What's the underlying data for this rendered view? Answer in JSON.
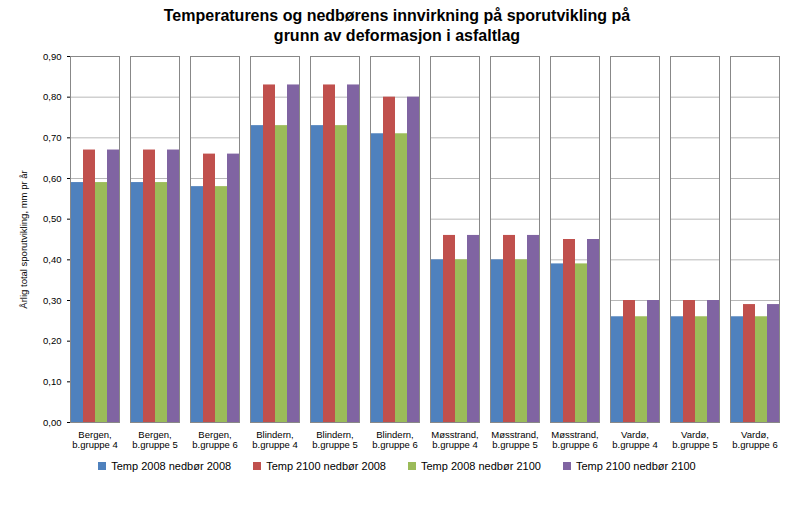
{
  "chart_data": {
    "type": "bar",
    "title": "Temperaturens og nedbørens innvirkning på sporutvikling på grunn av deformasjon i asfaltlag",
    "y_label": "Årlig total sporutvikling, mm pr år",
    "categories": [
      "Bergen, b.gruppe 4",
      "Bergen, b.gruppe 5",
      "Bergen, b.gruppe 6",
      "Blindern, b.gruppe 4",
      "Blindern, b.gruppe 5",
      "Blindern, b.gruppe 6",
      "Møsstrand, b.gruppe 4",
      "Møsstrand, b.gruppe 5",
      "Møsstrand, b.gruppe 6",
      "Vardø, b.gruppe 4",
      "Vardø, b.gruppe 5",
      "Vardø, b.gruppe 6"
    ],
    "series": [
      {
        "name": "Temp 2008 nedbør 2008",
        "color": "#4f81bd",
        "values": [
          0.59,
          0.59,
          0.58,
          0.73,
          0.73,
          0.71,
          0.4,
          0.4,
          0.39,
          0.26,
          0.26,
          0.26
        ]
      },
      {
        "name": "Temp 2100 nedbør 2008",
        "color": "#c0504d",
        "values": [
          0.67,
          0.67,
          0.66,
          0.83,
          0.83,
          0.8,
          0.46,
          0.46,
          0.45,
          0.3,
          0.3,
          0.29
        ]
      },
      {
        "name": "Temp 2008 nedbør 2100",
        "color": "#9bbb59",
        "values": [
          0.59,
          0.59,
          0.58,
          0.73,
          0.73,
          0.71,
          0.4,
          0.4,
          0.39,
          0.26,
          0.26,
          0.26
        ]
      },
      {
        "name": "Temp 2100 nedbør 2100",
        "color": "#8064a2",
        "values": [
          0.67,
          0.67,
          0.66,
          0.83,
          0.83,
          0.8,
          0.46,
          0.46,
          0.45,
          0.3,
          0.3,
          0.29
        ]
      }
    ],
    "ylim": [
      0,
      0.9
    ],
    "yticks": [
      {
        "value": 0,
        "label": "0,00"
      },
      {
        "value": 0.1,
        "label": "0,10"
      },
      {
        "value": 0.2,
        "label": "0,20"
      },
      {
        "value": 0.3,
        "label": "0,30"
      },
      {
        "value": 0.4,
        "label": "0,40"
      },
      {
        "value": 0.5,
        "label": "0,50"
      },
      {
        "value": 0.6,
        "label": "0,60"
      },
      {
        "value": 0.7,
        "label": "0,70"
      },
      {
        "value": 0.8,
        "label": "0,80"
      },
      {
        "value": 0.9,
        "label": "0,90"
      }
    ],
    "grid": true,
    "legend": "bottom"
  }
}
